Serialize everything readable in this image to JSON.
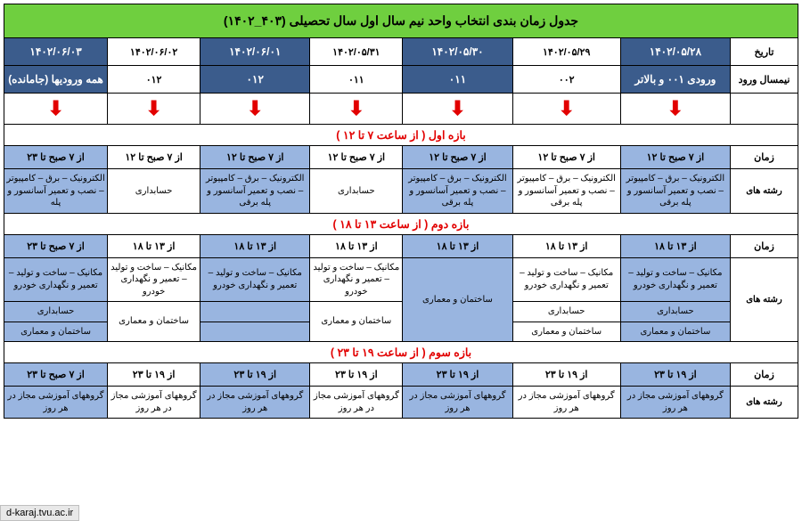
{
  "colors": {
    "title_bg": "#6fcf3f",
    "header_bg": "#3b5c8c",
    "header_fg": "#ffffff",
    "highlight_bg": "#99b5e0",
    "section_fg": "#e20000",
    "arrow_color": "#e20000",
    "border": "#000000"
  },
  "title": "جدول زمان بندی انتخاب واحد نیم سال اول سال تحصیلی (۴۰۳_۱۴۰۲)",
  "row_labels": {
    "date": "تاریخ",
    "term": "نیمسال ورود",
    "time": "زمان",
    "fields": "رشته های"
  },
  "dates": [
    "۱۴۰۲/۰۵/۲۸",
    "۱۴۰۲/۰۵/۲۹",
    "۱۴۰۲/۰۵/۳۰",
    "۱۴۰۲/۰۵/۳۱",
    "۱۴۰۲/۰۶/۰۱",
    "۱۴۰۲/۰۶/۰۲",
    "۱۴۰۲/۰۶/۰۳"
  ],
  "date_highlight": [
    true,
    false,
    true,
    false,
    true,
    false,
    true
  ],
  "terms": [
    "ورودی ۰۰۱ و بالاتر",
    "۰۰۲",
    "۰۱۱",
    "۰۱۱",
    "۰۱۲",
    "۰۱۲",
    "همه ورودیها (جامانده)"
  ],
  "term_highlight": [
    true,
    false,
    true,
    false,
    true,
    false,
    true
  ],
  "sections": {
    "s1": "بازه اول ( از ساعت ۷ تا ۱۲ )",
    "s2": "بازه دوم ( از ساعت ۱۳ تا ۱۸ )",
    "s3": "بازه سوم ( از ساعت ۱۹ تا ۲۳ )"
  },
  "section1": {
    "times": [
      "از ۷ صبح تا ۱۲",
      "از ۷ صبح تا ۱۲",
      "از ۷ صبح تا ۱۲",
      "از ۷ صبح تا ۱۲",
      "از ۷ صبح تا ۱۲",
      "از ۷ صبح تا ۱۲",
      "از ۷ صبح تا ۲۳"
    ],
    "time_highlight": [
      true,
      false,
      true,
      false,
      true,
      false,
      true
    ],
    "fields": [
      "الکترونیک – برق – کامپیوتر – نصب و تعمیر آسانسور و پله برقی",
      "الکترونیک – برق – کامپیوتر – نصب و تعمیر آسانسور و پله برقی",
      "الکترونیک – برق – کامپیوتر – نصب و تعمیر آسانسور و پله برقی",
      "حسابداری",
      "الکترونیک – برق – کامپیوتر – نصب و تعمیر آسانسور و پله برقی",
      "حسابداری",
      "الکترونیک – برق – کامپیوتر – نصب و تعمیر آسانسور و پله"
    ],
    "field_highlight": [
      true,
      false,
      true,
      false,
      true,
      false,
      true
    ]
  },
  "section2": {
    "times": [
      "از ۱۳ تا ۱۸",
      "از ۱۳ تا ۱۸",
      "از ۱۳ تا ۱۸",
      "از ۱۳ تا ۱۸",
      "از ۱۳ تا ۱۸",
      "از ۱۳ تا ۱۸",
      "از ۷ صبح تا ۲۳"
    ],
    "time_highlight": [
      true,
      false,
      true,
      false,
      true,
      false,
      true
    ],
    "row1": [
      "مکانیک – ساخت و تولید – تعمیر و نگهداری خودرو",
      "مکانیک – ساخت و تولید – تعمیر و نگهداری خودرو",
      "",
      "مکانیک – ساخت و تولید – تعمیر و نگهداری خودرو",
      "مکانیک – ساخت و تولید – تعمیر و نگهداری خودرو",
      "مکانیک – ساخت و تولید – تعمیر و نگهداری خودرو",
      "مکانیک – ساخت و تولید – تعمیر و نگهداری خودرو"
    ],
    "row2": [
      "حسابداری",
      "حسابداری",
      "",
      "",
      "",
      "",
      "حسابداری"
    ],
    "row3": [
      "ساختمان و معماری",
      "ساختمان و معماری",
      "ساختمان و معماری",
      "ساختمان و معماری",
      "",
      "ساختمان و معماری",
      "ساختمان و معماری"
    ],
    "merged23": "ساختمان و معماری",
    "col2_merged": "ساختمان و معماری"
  },
  "section3": {
    "times": [
      "از ۱۹ تا ۲۳",
      "از ۱۹ تا ۲۳",
      "از ۱۹ تا ۲۳",
      "از ۱۹ تا ۲۳",
      "از ۱۹ تا ۲۳",
      "از ۱۹ تا ۲۳",
      "از ۷ صبح تا ۲۳"
    ],
    "time_highlight": [
      true,
      false,
      true,
      false,
      true,
      false,
      true
    ],
    "fields_all": "گروههای آموزشی مجاز در هر روز"
  },
  "url_badge": "d-karaj.tvu.ac.ir"
}
